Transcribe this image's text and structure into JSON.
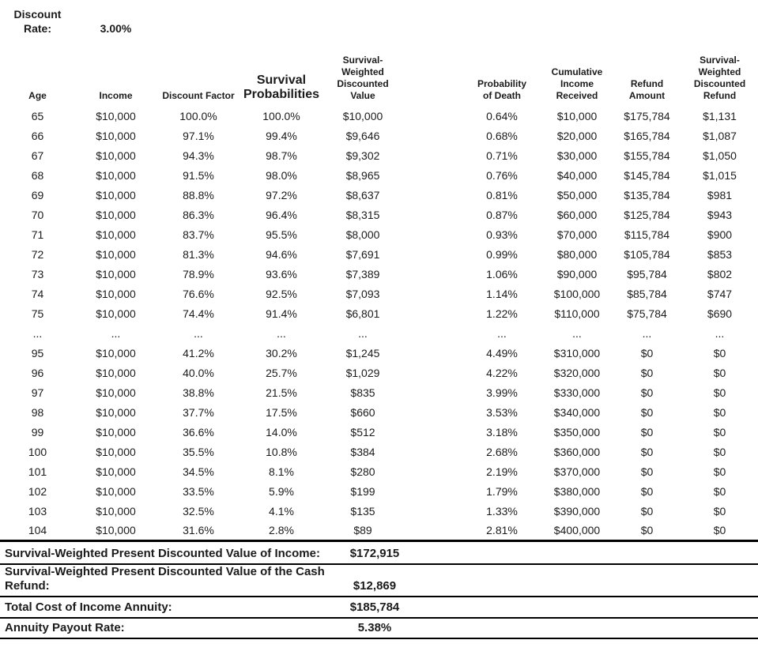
{
  "colors": {
    "text": "#1b1b1b",
    "rule": "#000000",
    "background": "#ffffff"
  },
  "discount": {
    "label_line1": "Discount",
    "label_line2": "Rate:",
    "value": "3.00%"
  },
  "table": {
    "columns": [
      {
        "id": "age",
        "label": "Age"
      },
      {
        "id": "income",
        "label": "Income"
      },
      {
        "id": "discount-factor",
        "label": "Discount Factor"
      },
      {
        "id": "survival-probabilities",
        "label": "Survival\nProbabilities",
        "large": true
      },
      {
        "id": "survival-weighted-discounted-value",
        "label": "Survival-\nWeighted\nDiscounted\nValue"
      },
      {
        "id": "spacer",
        "label": "",
        "spacer": true
      },
      {
        "id": "probability-of-death",
        "label": "Probability\nof Death"
      },
      {
        "id": "cumulative-income-received",
        "label": "Cumulative\nIncome\nReceived"
      },
      {
        "id": "refund-amount",
        "label": "Refund\nAmount"
      },
      {
        "id": "survival-weighted-discounted-refund",
        "label": "Survival-\nWeighted\nDiscounted\nRefund"
      }
    ],
    "rows": [
      [
        "65",
        "$10,000",
        "100.0%",
        "100.0%",
        "$10,000",
        "0.64%",
        "$10,000",
        "$175,784",
        "$1,131"
      ],
      [
        "66",
        "$10,000",
        "97.1%",
        "99.4%",
        "$9,646",
        "0.68%",
        "$20,000",
        "$165,784",
        "$1,087"
      ],
      [
        "67",
        "$10,000",
        "94.3%",
        "98.7%",
        "$9,302",
        "0.71%",
        "$30,000",
        "$155,784",
        "$1,050"
      ],
      [
        "68",
        "$10,000",
        "91.5%",
        "98.0%",
        "$8,965",
        "0.76%",
        "$40,000",
        "$145,784",
        "$1,015"
      ],
      [
        "69",
        "$10,000",
        "88.8%",
        "97.2%",
        "$8,637",
        "0.81%",
        "$50,000",
        "$135,784",
        "$981"
      ],
      [
        "70",
        "$10,000",
        "86.3%",
        "96.4%",
        "$8,315",
        "0.87%",
        "$60,000",
        "$125,784",
        "$943"
      ],
      [
        "71",
        "$10,000",
        "83.7%",
        "95.5%",
        "$8,000",
        "0.93%",
        "$70,000",
        "$115,784",
        "$900"
      ],
      [
        "72",
        "$10,000",
        "81.3%",
        "94.6%",
        "$7,691",
        "0.99%",
        "$80,000",
        "$105,784",
        "$853"
      ],
      [
        "73",
        "$10,000",
        "78.9%",
        "93.6%",
        "$7,389",
        "1.06%",
        "$90,000",
        "$95,784",
        "$802"
      ],
      [
        "74",
        "$10,000",
        "76.6%",
        "92.5%",
        "$7,093",
        "1.14%",
        "$100,000",
        "$85,784",
        "$747"
      ],
      [
        "75",
        "$10,000",
        "74.4%",
        "91.4%",
        "$6,801",
        "1.22%",
        "$110,000",
        "$75,784",
        "$690"
      ],
      [
        "...",
        "...",
        "...",
        "...",
        "...",
        "...",
        "...",
        "...",
        "..."
      ],
      [
        "95",
        "$10,000",
        "41.2%",
        "30.2%",
        "$1,245",
        "4.49%",
        "$310,000",
        "$0",
        "$0"
      ],
      [
        "96",
        "$10,000",
        "40.0%",
        "25.7%",
        "$1,029",
        "4.22%",
        "$320,000",
        "$0",
        "$0"
      ],
      [
        "97",
        "$10,000",
        "38.8%",
        "21.5%",
        "$835",
        "3.99%",
        "$330,000",
        "$0",
        "$0"
      ],
      [
        "98",
        "$10,000",
        "37.7%",
        "17.5%",
        "$660",
        "3.53%",
        "$340,000",
        "$0",
        "$0"
      ],
      [
        "99",
        "$10,000",
        "36.6%",
        "14.0%",
        "$512",
        "3.18%",
        "$350,000",
        "$0",
        "$0"
      ],
      [
        "100",
        "$10,000",
        "35.5%",
        "10.8%",
        "$384",
        "2.68%",
        "$360,000",
        "$0",
        "$0"
      ],
      [
        "101",
        "$10,000",
        "34.5%",
        "8.1%",
        "$280",
        "2.19%",
        "$370,000",
        "$0",
        "$0"
      ],
      [
        "102",
        "$10,000",
        "33.5%",
        "5.9%",
        "$199",
        "1.79%",
        "$380,000",
        "$0",
        "$0"
      ],
      [
        "103",
        "$10,000",
        "32.5%",
        "4.1%",
        "$135",
        "1.33%",
        "$390,000",
        "$0",
        "$0"
      ],
      [
        "104",
        "$10,000",
        "31.6%",
        "2.8%",
        "$89",
        "2.81%",
        "$400,000",
        "$0",
        "$0"
      ]
    ]
  },
  "summary": [
    {
      "id": "swpdv-income",
      "label": "Survival-Weighted Present Discounted Value of Income:",
      "value": "$172,915"
    },
    {
      "id": "swpdv-cash-refund",
      "label": "Survival-Weighted Present Discounted Value of the Cash Refund:",
      "value": "$12,869"
    },
    {
      "id": "total-cost",
      "label": "Total Cost of Income Annuity:",
      "value": "$185,784"
    },
    {
      "id": "annuity-payout-rate",
      "label": "Annuity Payout Rate:",
      "value": "5.38%"
    }
  ]
}
